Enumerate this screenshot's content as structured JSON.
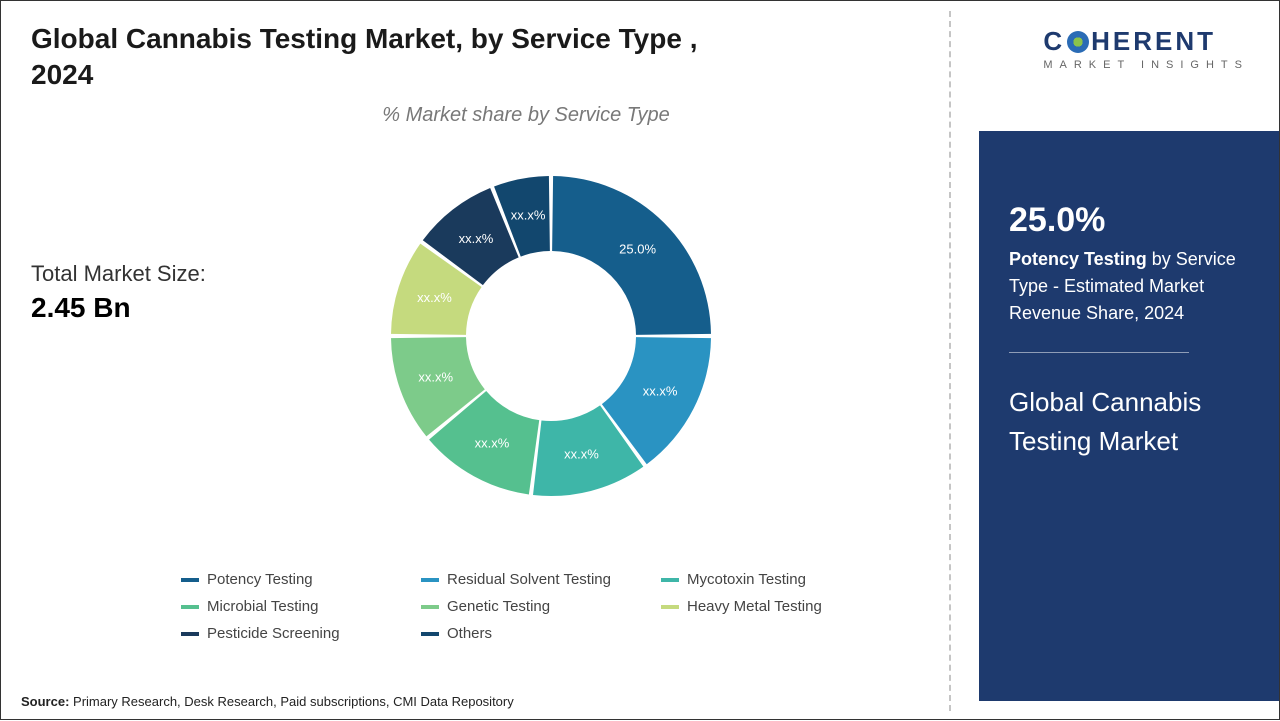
{
  "title": "Global Cannabis Testing Market, by Service Type , 2024",
  "subtitle": "% Market share by Service Type",
  "market_size": {
    "label": "Total Market Size:",
    "value": "2.45 Bn"
  },
  "chart": {
    "type": "donut",
    "inner_radius": 85,
    "outer_radius": 160,
    "gap_deg": 1.5,
    "background": "#ffffff",
    "slices": [
      {
        "name": "Potency Testing",
        "value": 25.0,
        "label": "25.0%",
        "color": "#155e8c",
        "label_color": "#ffffff"
      },
      {
        "name": "Residual Solvent Testing",
        "value": 15.0,
        "label": "xx.x%",
        "color": "#2a93c2",
        "label_color": "#ffffff"
      },
      {
        "name": "Mycotoxin Testing",
        "value": 12.0,
        "label": "xx.x%",
        "color": "#3eb6a8",
        "label_color": "#ffffff"
      },
      {
        "name": "Microbial Testing",
        "value": 12.0,
        "label": "xx.x%",
        "color": "#55c08f",
        "label_color": "#ffffff"
      },
      {
        "name": "Genetic Testing",
        "value": 11.0,
        "label": "xx.x%",
        "color": "#7dcb8a",
        "label_color": "#ffffff"
      },
      {
        "name": "Heavy Metal Testing",
        "value": 10.0,
        "label": "xx.x%",
        "color": "#c5da7e",
        "label_color": "#7a7a5a"
      },
      {
        "name": "Pesticide Screening",
        "value": 9.0,
        "label": "xx.x%",
        "color": "#1a3a5c",
        "label_color": "#ffffff"
      },
      {
        "name": "Others",
        "value": 6.0,
        "label": "xx.x%",
        "color": "#12476e",
        "label_color": "#ffffff"
      }
    ]
  },
  "legend": {
    "rows": [
      [
        "Potency Testing",
        "Residual Solvent Testing",
        "Mycotoxin Testing"
      ],
      [
        "Microbial Testing",
        "Genetic Testing",
        "Heavy Metal Testing"
      ],
      [
        "Pesticide Screening",
        "Others"
      ]
    ],
    "colors": {
      "Potency Testing": "#155e8c",
      "Residual Solvent Testing": "#2a93c2",
      "Mycotoxin Testing": "#3eb6a8",
      "Microbial Testing": "#55c08f",
      "Genetic Testing": "#7dcb8a",
      "Heavy Metal Testing": "#c5da7e",
      "Pesticide Screening": "#1a3a5c",
      "Others": "#12476e"
    }
  },
  "source": {
    "label": "Source:",
    "text": "Primary Research, Desk Research, Paid subscriptions, CMI Data Repository"
  },
  "logo": {
    "text": "COHERENT",
    "sub": "MARKET INSIGHTS"
  },
  "highlight": {
    "pct": "25.0%",
    "line1_bold": "Potency Testing",
    "line1_rest": " by Service Type - Estimated Market Revenue Share, 2024",
    "market_name": "Global Cannabis Testing Market"
  },
  "style": {
    "title_fontsize": 28,
    "subtitle_fontsize": 20,
    "subtitle_color": "#787878",
    "blue_box_bg": "#1e3a6e",
    "logo_color": "#1e3a6e",
    "container_border": "#333333"
  }
}
